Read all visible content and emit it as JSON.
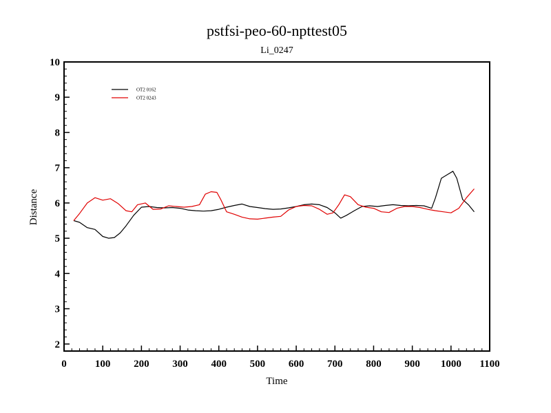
{
  "chart_data": {
    "type": "line",
    "title": "pstfsi-peo-60-npttest05",
    "subtitle": "Li_0247",
    "xlabel": "Time",
    "ylabel": "Distance",
    "xlim": [
      0,
      1100
    ],
    "ylim": [
      1.8,
      10
    ],
    "xticks": [
      0,
      100,
      200,
      300,
      400,
      500,
      600,
      700,
      800,
      900,
      1000,
      1100
    ],
    "yticks": [
      2,
      3,
      4,
      5,
      6,
      7,
      8,
      9,
      10
    ],
    "grid": false,
    "legend_position": "top-left",
    "series": [
      {
        "name": "OT2 0162",
        "color": "#000000",
        "x": [
          25,
          40,
          60,
          80,
          100,
          115,
          130,
          145,
          160,
          180,
          200,
          220,
          240,
          260,
          280,
          300,
          320,
          340,
          360,
          380,
          400,
          420,
          440,
          460,
          480,
          500,
          520,
          540,
          560,
          580,
          600,
          620,
          640,
          660,
          680,
          700,
          715,
          730,
          750,
          770,
          790,
          810,
          830,
          850,
          870,
          890,
          910,
          930,
          950,
          960,
          975,
          990,
          1005,
          1015,
          1030,
          1045,
          1060
        ],
        "values": [
          5.5,
          5.45,
          5.3,
          5.25,
          5.05,
          5.0,
          5.02,
          5.15,
          5.35,
          5.65,
          5.88,
          5.9,
          5.87,
          5.86,
          5.87,
          5.85,
          5.8,
          5.78,
          5.77,
          5.78,
          5.82,
          5.88,
          5.93,
          5.97,
          5.9,
          5.87,
          5.84,
          5.82,
          5.83,
          5.86,
          5.9,
          5.95,
          5.97,
          5.95,
          5.87,
          5.72,
          5.57,
          5.65,
          5.78,
          5.9,
          5.92,
          5.9,
          5.93,
          5.95,
          5.93,
          5.92,
          5.93,
          5.92,
          5.85,
          6.15,
          6.7,
          6.8,
          6.9,
          6.7,
          6.1,
          5.95,
          5.75
        ]
      },
      {
        "name": "OT2 0243",
        "color": "#e00000",
        "x": [
          25,
          40,
          60,
          80,
          100,
          120,
          140,
          160,
          175,
          190,
          210,
          230,
          250,
          270,
          290,
          310,
          330,
          350,
          365,
          380,
          395,
          405,
          420,
          440,
          460,
          480,
          500,
          520,
          540,
          560,
          580,
          600,
          620,
          640,
          660,
          680,
          695,
          710,
          725,
          740,
          760,
          780,
          800,
          820,
          840,
          860,
          880,
          900,
          920,
          940,
          960,
          980,
          1000,
          1020,
          1040,
          1060
        ],
        "values": [
          5.5,
          5.7,
          6.0,
          6.15,
          6.08,
          6.12,
          5.98,
          5.78,
          5.75,
          5.95,
          6.0,
          5.82,
          5.83,
          5.92,
          5.9,
          5.88,
          5.9,
          5.95,
          6.25,
          6.32,
          6.3,
          6.1,
          5.75,
          5.68,
          5.6,
          5.55,
          5.54,
          5.57,
          5.6,
          5.62,
          5.8,
          5.9,
          5.93,
          5.92,
          5.82,
          5.68,
          5.72,
          5.95,
          6.23,
          6.18,
          5.95,
          5.88,
          5.85,
          5.75,
          5.73,
          5.85,
          5.9,
          5.9,
          5.87,
          5.82,
          5.78,
          5.75,
          5.72,
          5.85,
          6.15,
          6.4
        ]
      }
    ]
  }
}
